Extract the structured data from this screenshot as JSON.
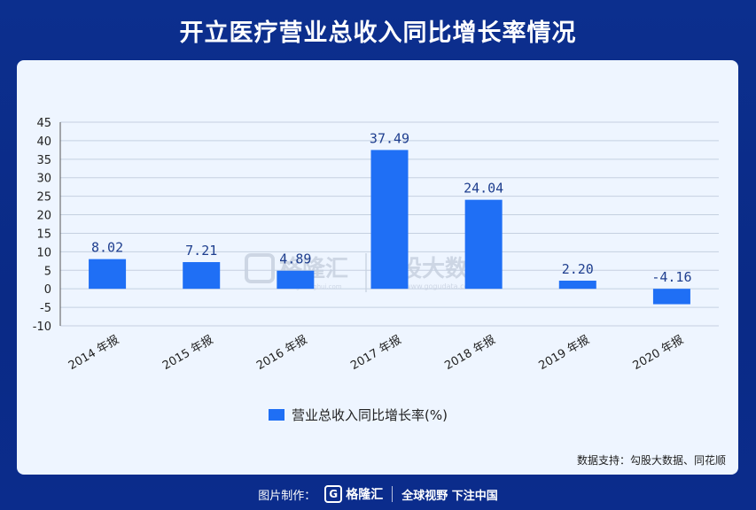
{
  "title": "开立医疗营业总收入同比增长率情况",
  "source": "数据支持：勾股大数据、同花顺",
  "footer": {
    "made_by_label": "图片制作：",
    "brand": "格隆汇",
    "slogan": "全球视野 下注中国"
  },
  "watermark": {
    "brand_left": "格隆汇",
    "brand_right": "勾股大数据",
    "url_left": "www.gelonghui.com",
    "url_right": "www.gogudata.com"
  },
  "colors": {
    "bar": "#1f6ff5",
    "background": "#0c2f8e",
    "panel": "#eef5ff"
  },
  "chart_data": {
    "type": "bar",
    "categories": [
      "2014 年报",
      "2015 年报",
      "2016 年报",
      "2017 年报",
      "2018 年报",
      "2019 年报",
      "2020 年报"
    ],
    "series": [
      {
        "name": "营业总收入同比增长率(%)",
        "values": [
          8.02,
          7.21,
          4.89,
          37.49,
          24.04,
          2.2,
          -4.16
        ],
        "labels": [
          "8.02",
          "7.21",
          "4.89",
          "37.49",
          "24.04",
          "2.20",
          "-4.16"
        ]
      }
    ],
    "ylim": [
      -10,
      45
    ],
    "yticks": [
      -10,
      -5,
      0,
      5,
      10,
      15,
      20,
      25,
      30,
      35,
      40,
      45
    ],
    "grid": true,
    "legend": "bottom"
  }
}
